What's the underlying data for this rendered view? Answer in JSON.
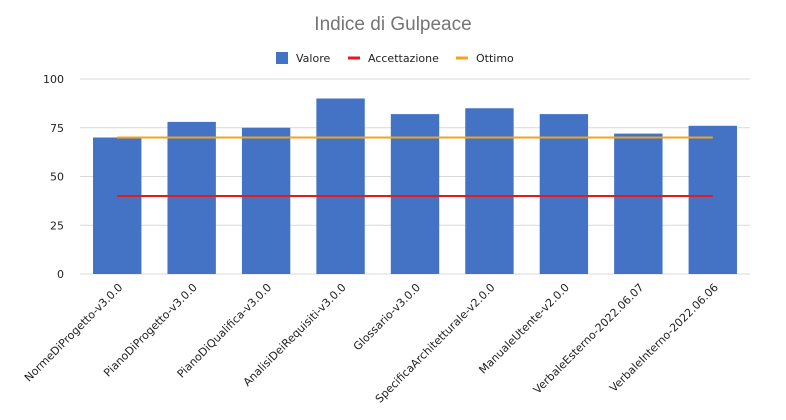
{
  "chart_data": {
    "type": "bar",
    "title": "Indice di Gulpeace",
    "xlabel": "",
    "ylabel": "",
    "ylim": [
      0,
      100
    ],
    "yticks": [
      0,
      25,
      50,
      75,
      100
    ],
    "categories": [
      "NormeDiProgetto-v3.0.0",
      "PianoDiProgetto-v3.0.0",
      "PianoDiQualifica-v3.0.0",
      "AnalisiDeiRequisiti-v3.0.0",
      "Glossario-v3.0.0",
      "SpecificaArchitetturale-v2.0.0",
      "ManualeUtente-v2.0.0",
      "VerbaleEsterno-2022.06.07",
      "VerbaleInterno-2022.06.06"
    ],
    "series": [
      {
        "name": "Valore",
        "type": "bar",
        "color": "#4472c4",
        "values": [
          70,
          78,
          75,
          90,
          82,
          85,
          82,
          72,
          76
        ]
      },
      {
        "name": "Accettazione",
        "type": "line",
        "color": "#e31b1b",
        "values": [
          40,
          40,
          40,
          40,
          40,
          40,
          40,
          40,
          40
        ]
      },
      {
        "name": "Ottimo",
        "type": "line",
        "color": "#f1a51a",
        "values": [
          70,
          70,
          70,
          70,
          70,
          70,
          70,
          70,
          70
        ]
      }
    ],
    "grid": true,
    "legend_position": "top"
  }
}
